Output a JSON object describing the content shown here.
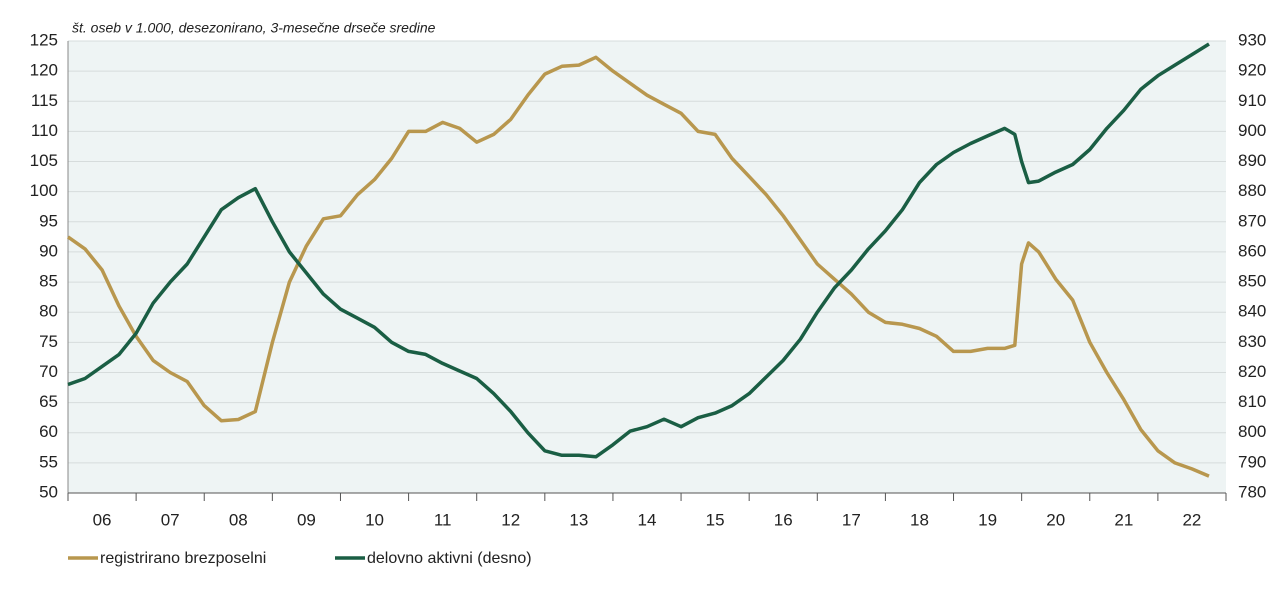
{
  "chart_data": {
    "type": "line",
    "annotation": "št. oseb v 1.000, desezonirano, 3-mesečne drseče sredine",
    "x": [
      2006,
      2006.25,
      2006.5,
      2006.75,
      2007,
      2007.25,
      2007.5,
      2007.75,
      2008,
      2008.25,
      2008.5,
      2008.75,
      2009,
      2009.25,
      2009.5,
      2009.75,
      2010,
      2010.25,
      2010.5,
      2010.75,
      2011,
      2011.25,
      2011.5,
      2011.75,
      2012,
      2012.25,
      2012.5,
      2012.75,
      2013,
      2013.25,
      2013.5,
      2013.75,
      2014,
      2014.25,
      2014.5,
      2014.75,
      2015,
      2015.25,
      2015.5,
      2015.75,
      2016,
      2016.25,
      2016.5,
      2016.75,
      2017,
      2017.25,
      2017.5,
      2017.75,
      2018,
      2018.25,
      2018.5,
      2018.75,
      2019,
      2019.25,
      2019.5,
      2019.75,
      2019.9,
      2020,
      2020.1,
      2020.25,
      2020.5,
      2020.75,
      2021,
      2021.25,
      2021.5,
      2021.75,
      2022,
      2022.25,
      2022.5,
      2022.75
    ],
    "xlim": [
      2006,
      2023
    ],
    "xticks": [
      {
        "value": 2006.5,
        "label": "06"
      },
      {
        "value": 2007.5,
        "label": "07"
      },
      {
        "value": 2008.5,
        "label": "08"
      },
      {
        "value": 2009.5,
        "label": "09"
      },
      {
        "value": 2010.5,
        "label": "10"
      },
      {
        "value": 2011.5,
        "label": "11"
      },
      {
        "value": 2012.5,
        "label": "12"
      },
      {
        "value": 2013.5,
        "label": "13"
      },
      {
        "value": 2014.5,
        "label": "14"
      },
      {
        "value": 2015.5,
        "label": "15"
      },
      {
        "value": 2016.5,
        "label": "16"
      },
      {
        "value": 2017.5,
        "label": "17"
      },
      {
        "value": 2018.5,
        "label": "18"
      },
      {
        "value": 2019.5,
        "label": "19"
      },
      {
        "value": 2020.5,
        "label": "20"
      },
      {
        "value": 2021.5,
        "label": "21"
      },
      {
        "value": 2022.5,
        "label": "22"
      }
    ],
    "ylim": [
      50,
      125
    ],
    "yticks": [
      50,
      55,
      60,
      65,
      70,
      75,
      80,
      85,
      90,
      95,
      100,
      105,
      110,
      115,
      120,
      125
    ],
    "y2lim": [
      780,
      930
    ],
    "y2ticks": [
      780,
      790,
      800,
      810,
      820,
      830,
      840,
      850,
      860,
      870,
      880,
      890,
      900,
      910,
      920,
      930
    ],
    "grid": true,
    "series": [
      {
        "name": "registrirano brezposelni",
        "color": "#b8974e",
        "values": [
          92.5,
          90.5,
          87,
          81,
          76,
          72,
          70,
          68.5,
          64.5,
          62,
          62.2,
          63.5,
          75,
          85,
          91,
          95.5,
          96,
          99.5,
          102,
          105.5,
          110,
          110,
          111.5,
          110.5,
          108.2,
          109.5,
          112,
          116,
          119.5,
          120.8,
          121,
          122.3,
          120,
          118,
          116,
          114.5,
          113,
          110,
          109.5,
          105.5,
          102.5,
          99.5,
          96,
          92,
          88,
          85.5,
          83,
          80,
          78.3,
          78,
          77.3,
          76,
          73.5,
          73.5,
          74,
          74,
          74.5,
          88,
          91.5,
          90,
          85.5,
          82,
          75,
          70,
          65.5,
          60.5,
          57,
          55,
          54,
          52.8
        ]
      },
      {
        "name": "delovno aktivni (desno)",
        "color": "#1a5e44",
        "axis": "y2",
        "values": [
          816,
          818,
          822,
          826,
          833,
          843,
          850,
          856,
          865,
          874,
          878,
          881,
          870,
          860,
          853,
          846,
          841,
          838,
          835,
          830,
          827,
          826,
          823,
          820.5,
          818,
          813,
          807,
          800,
          794,
          792.5,
          792.5,
          792,
          796,
          800.5,
          802,
          804.5,
          802,
          805,
          806.5,
          809,
          813,
          818.5,
          824,
          831,
          840,
          848,
          854,
          861,
          867,
          874,
          883,
          889,
          893,
          896,
          898.5,
          901,
          899,
          890,
          883,
          883.5,
          886.5,
          889,
          894,
          901,
          907,
          914,
          918.5,
          922,
          925.5,
          929
        ]
      }
    ]
  }
}
